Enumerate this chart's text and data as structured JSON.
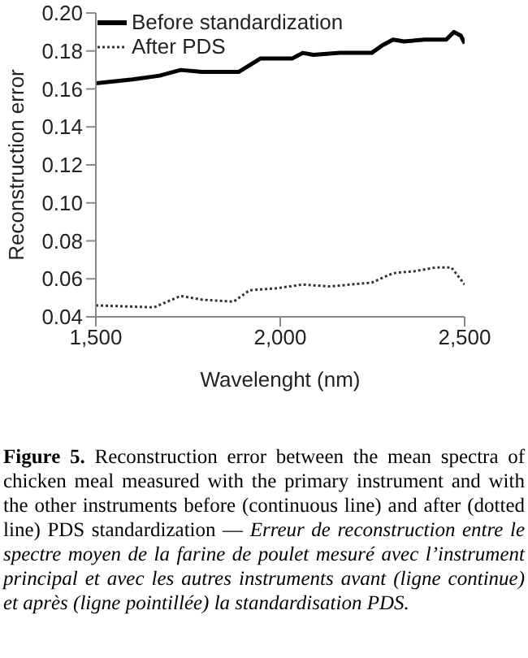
{
  "chart_data": {
    "type": "line",
    "xlabel": "Wavelenght (nm)",
    "ylabel": "Reconstruction error",
    "xlim": [
      1500,
      2500
    ],
    "xticks": [
      {
        "value": 1500,
        "label": "1,500"
      },
      {
        "value": 2000,
        "label": "2,000"
      },
      {
        "value": 2500,
        "label": "2,500"
      }
    ],
    "ylim": [
      0.04,
      0.2
    ],
    "yticks": [
      {
        "value": 0.04,
        "label": "0.04"
      },
      {
        "value": 0.06,
        "label": "0.06"
      },
      {
        "value": 0.08,
        "label": "0.08"
      },
      {
        "value": 0.1,
        "label": "0.10"
      },
      {
        "value": 0.12,
        "label": "0.12"
      },
      {
        "value": 0.14,
        "label": "0.14"
      },
      {
        "value": 0.16,
        "label": "0.16"
      },
      {
        "value": 0.18,
        "label": "0.18"
      },
      {
        "value": 0.2,
        "label": "0.20"
      }
    ],
    "legend": "top left",
    "marker": "none",
    "series": [
      {
        "name": "Before standardization",
        "color": "#000000",
        "line_style": "solid",
        "x": [
          1500,
          1600,
          1673,
          1730,
          1788,
          1888,
          1946,
          2032,
          2061,
          2090,
          2162,
          2248,
          2277,
          2306,
          2335,
          2392,
          2450,
          2471,
          2490,
          2500
        ],
        "values": [
          0.163,
          0.165,
          0.167,
          0.17,
          0.169,
          0.169,
          0.176,
          0.176,
          0.179,
          0.178,
          0.179,
          0.179,
          0.183,
          0.186,
          0.185,
          0.186,
          0.186,
          0.19,
          0.188,
          0.184
        ]
      },
      {
        "name": "After PDS",
        "color": "#333333",
        "line_style": "dotted",
        "x": [
          1500,
          1658,
          1730,
          1788,
          1874,
          1917,
          1989,
          2061,
          2133,
          2248,
          2306,
          2363,
          2421,
          2464,
          2500
        ],
        "values": [
          0.046,
          0.045,
          0.051,
          0.049,
          0.048,
          0.054,
          0.055,
          0.057,
          0.056,
          0.058,
          0.063,
          0.064,
          0.066,
          0.066,
          0.057
        ]
      }
    ],
    "annotations": [
      "Figure 5.",
      "Reconstruction error between the mean spectra of chicken meal measured with the primary instrument and with the other instruments before (continuous line) and after (dotted line) PDS standardization — ",
      "Erreur de reconstruction entre le spectre moyen de la farine de poulet mesuré avec l’instrument principal et avec les autres instruments avant (ligne continue) et après (ligne pointillée) la standardisation PDS."
    ]
  }
}
